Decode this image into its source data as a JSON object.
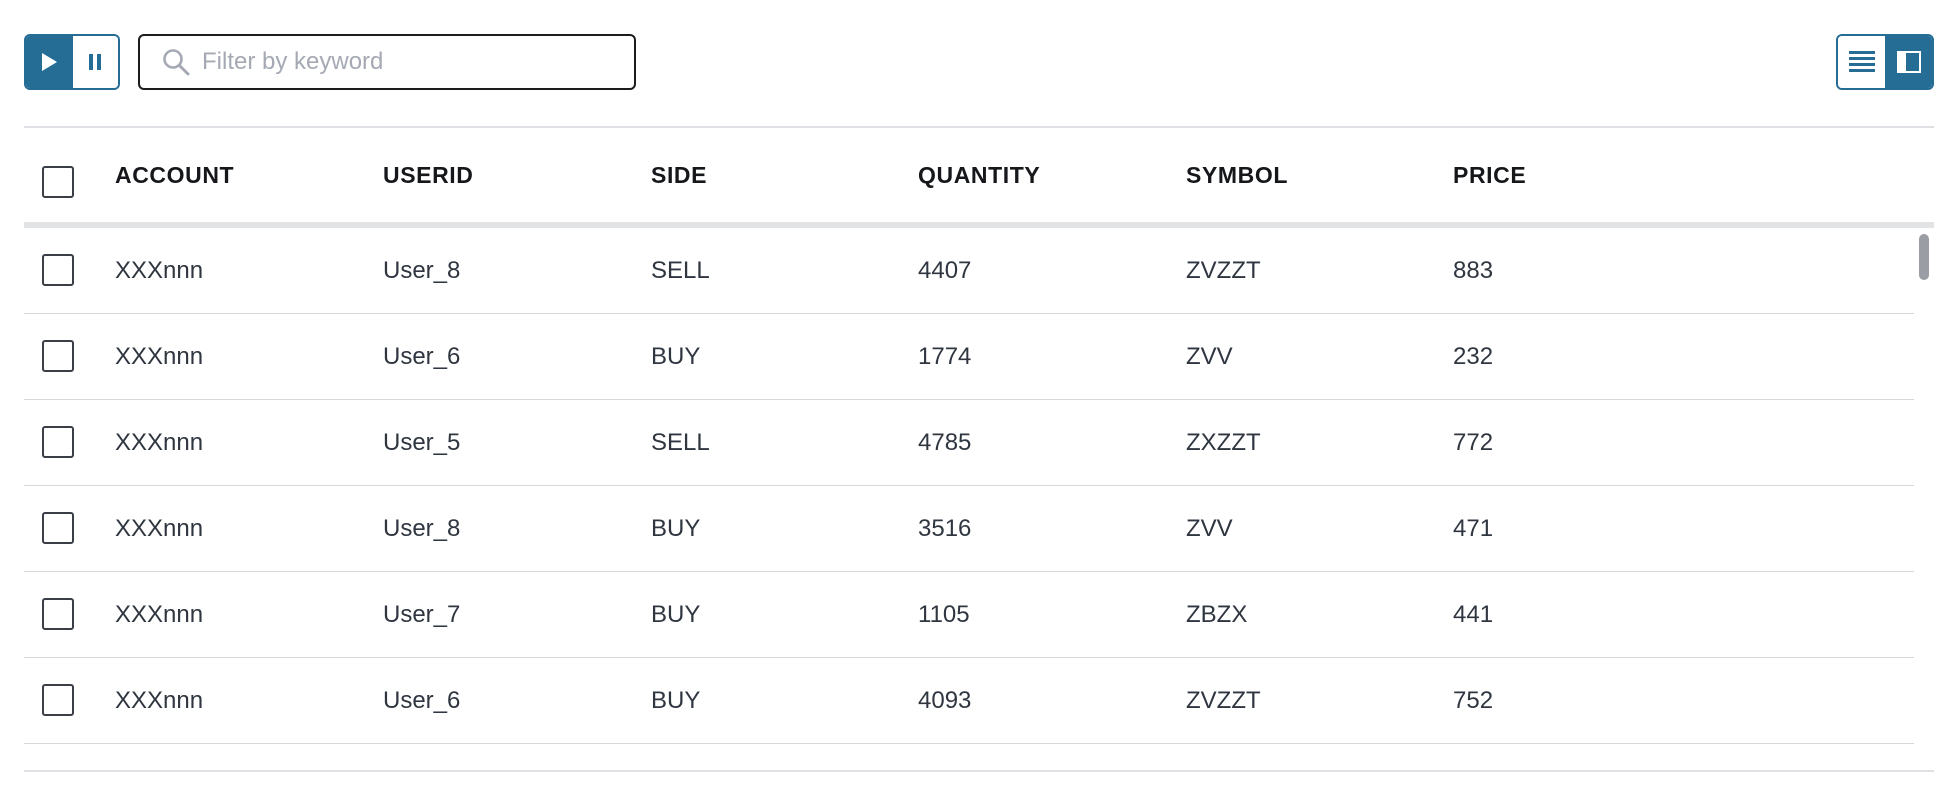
{
  "toolbar": {
    "play_icon": "play-icon",
    "pause_icon": "pause-icon",
    "search": {
      "placeholder": "Filter by keyword",
      "value": "",
      "icon": "search-icon"
    },
    "view_icons": [
      "list-view-icon",
      "split-view-icon"
    ]
  },
  "table": {
    "columns": [
      "ACCOUNT",
      "USERID",
      "SIDE",
      "QUANTITY",
      "SYMBOL",
      "PRICE"
    ],
    "rows": [
      [
        "XXXnnn",
        "User_8",
        "SELL",
        "4407",
        "ZVZZT",
        "883"
      ],
      [
        "XXXnnn",
        "User_6",
        "BUY",
        "1774",
        "ZVV",
        "232"
      ],
      [
        "XXXnnn",
        "User_5",
        "SELL",
        "4785",
        "ZXZZT",
        "772"
      ],
      [
        "XXXnnn",
        "User_8",
        "BUY",
        "3516",
        "ZVV",
        "471"
      ],
      [
        "XXXnnn",
        "User_7",
        "BUY",
        "1105",
        "ZBZX",
        "441"
      ],
      [
        "XXXnnn",
        "User_6",
        "BUY",
        "4093",
        "ZVZZT",
        "752"
      ]
    ]
  },
  "colors": {
    "accent": "#266d96",
    "border_dark": "#1c1c1c",
    "divider": "#dfe1e4",
    "text": "#2f3640",
    "header_text": "#15171a",
    "placeholder": "#a4a9b3"
  }
}
